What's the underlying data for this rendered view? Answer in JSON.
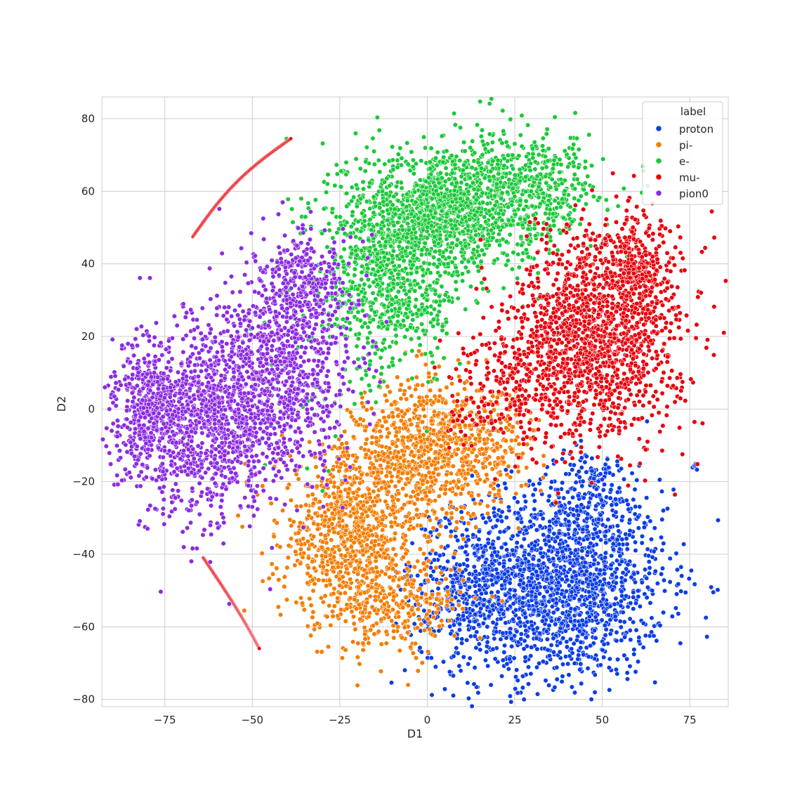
{
  "chart_data": {
    "type": "scatter",
    "title": "",
    "xlabel": "D1",
    "ylabel": "D2",
    "xlim": [
      -93,
      86
    ],
    "ylim": [
      -82,
      86
    ],
    "xticks": [
      -75,
      -50,
      -25,
      0,
      25,
      50,
      75
    ],
    "yticks": [
      -80,
      -60,
      -40,
      -20,
      0,
      20,
      40,
      60,
      80
    ],
    "xtick_labels": [
      "−75",
      "−50",
      "−25",
      "0",
      "25",
      "50",
      "75"
    ],
    "ytick_labels": [
      "−80",
      "−60",
      "−40",
      "−20",
      "0",
      "20",
      "40",
      "60",
      "80"
    ],
    "grid": true,
    "background": "#eaeaf2",
    "legend": {
      "title": "label",
      "position": "top-right",
      "entries": [
        "proton",
        "pi-",
        "e-",
        "mu-",
        "pion0"
      ]
    },
    "series": [
      {
        "name": "proton",
        "color": "#0c3de8",
        "clusters": [
          {
            "cx": 38,
            "cy": -48,
            "sx": 15,
            "sy": 13,
            "n": 1700
          },
          {
            "cx": 12,
            "cy": -50,
            "sx": 9,
            "sy": 11,
            "n": 350
          },
          {
            "cx": 47,
            "cy": -23,
            "sx": 7,
            "sy": 6,
            "n": 150
          },
          {
            "cx": 76.5,
            "cy": -15.5,
            "sx": 0.6,
            "sy": 0.6,
            "n": 12
          }
        ]
      },
      {
        "name": "pi-",
        "color": "#f57c00",
        "clusters": [
          {
            "cx": -22,
            "cy": -35,
            "sx": 10,
            "sy": 12,
            "n": 900
          },
          {
            "cx": 0,
            "cy": -12,
            "sx": 10,
            "sy": 10,
            "n": 800
          },
          {
            "cx": -8,
            "cy": -55,
            "sx": 9,
            "sy": 6,
            "n": 250
          },
          {
            "cx": 18,
            "cy": -8,
            "sx": 8,
            "sy": 7,
            "n": 150
          }
        ]
      },
      {
        "name": "e-",
        "color": "#1ac938",
        "clusters": [
          {
            "cx": 5,
            "cy": 55,
            "sx": 14,
            "sy": 9,
            "n": 1200
          },
          {
            "cx": -10,
            "cy": 35,
            "sx": 10,
            "sy": 12,
            "n": 700
          },
          {
            "cx": 30,
            "cy": 62,
            "sx": 10,
            "sy": 7,
            "n": 400
          },
          {
            "cx": -30,
            "cy": 10,
            "sx": 10,
            "sy": 14,
            "n": 60
          }
        ]
      },
      {
        "name": "mu-",
        "color": "#e8000b",
        "clusters": [
          {
            "cx": 48,
            "cy": 20,
            "sx": 12,
            "sy": 14,
            "n": 1500
          },
          {
            "cx": 60,
            "cy": 38,
            "sx": 6,
            "sy": 7,
            "n": 300
          },
          {
            "cx": 22,
            "cy": 5,
            "sx": 8,
            "sy": 8,
            "n": 200
          }
        ],
        "arcs": [
          {
            "x0": -67,
            "y0": 47.5,
            "x1": -39,
            "y1": 74.5,
            "bend": -1.5,
            "n": 160
          },
          {
            "x0": -64,
            "y0": -41,
            "x1": -48,
            "y1": -66,
            "bend": 1.5,
            "n": 160
          }
        ]
      },
      {
        "name": "pion0",
        "color": "#8b2be2",
        "clusters": [
          {
            "cx": -62,
            "cy": -2,
            "sx": 13,
            "sy": 13,
            "n": 1400
          },
          {
            "cx": -40,
            "cy": 15,
            "sx": 10,
            "sy": 14,
            "n": 700
          },
          {
            "cx": -80,
            "cy": 0,
            "sx": 4,
            "sy": 8,
            "n": 250
          },
          {
            "cx": -35,
            "cy": 35,
            "sx": 6,
            "sy": 7,
            "n": 200
          }
        ]
      }
    ]
  }
}
